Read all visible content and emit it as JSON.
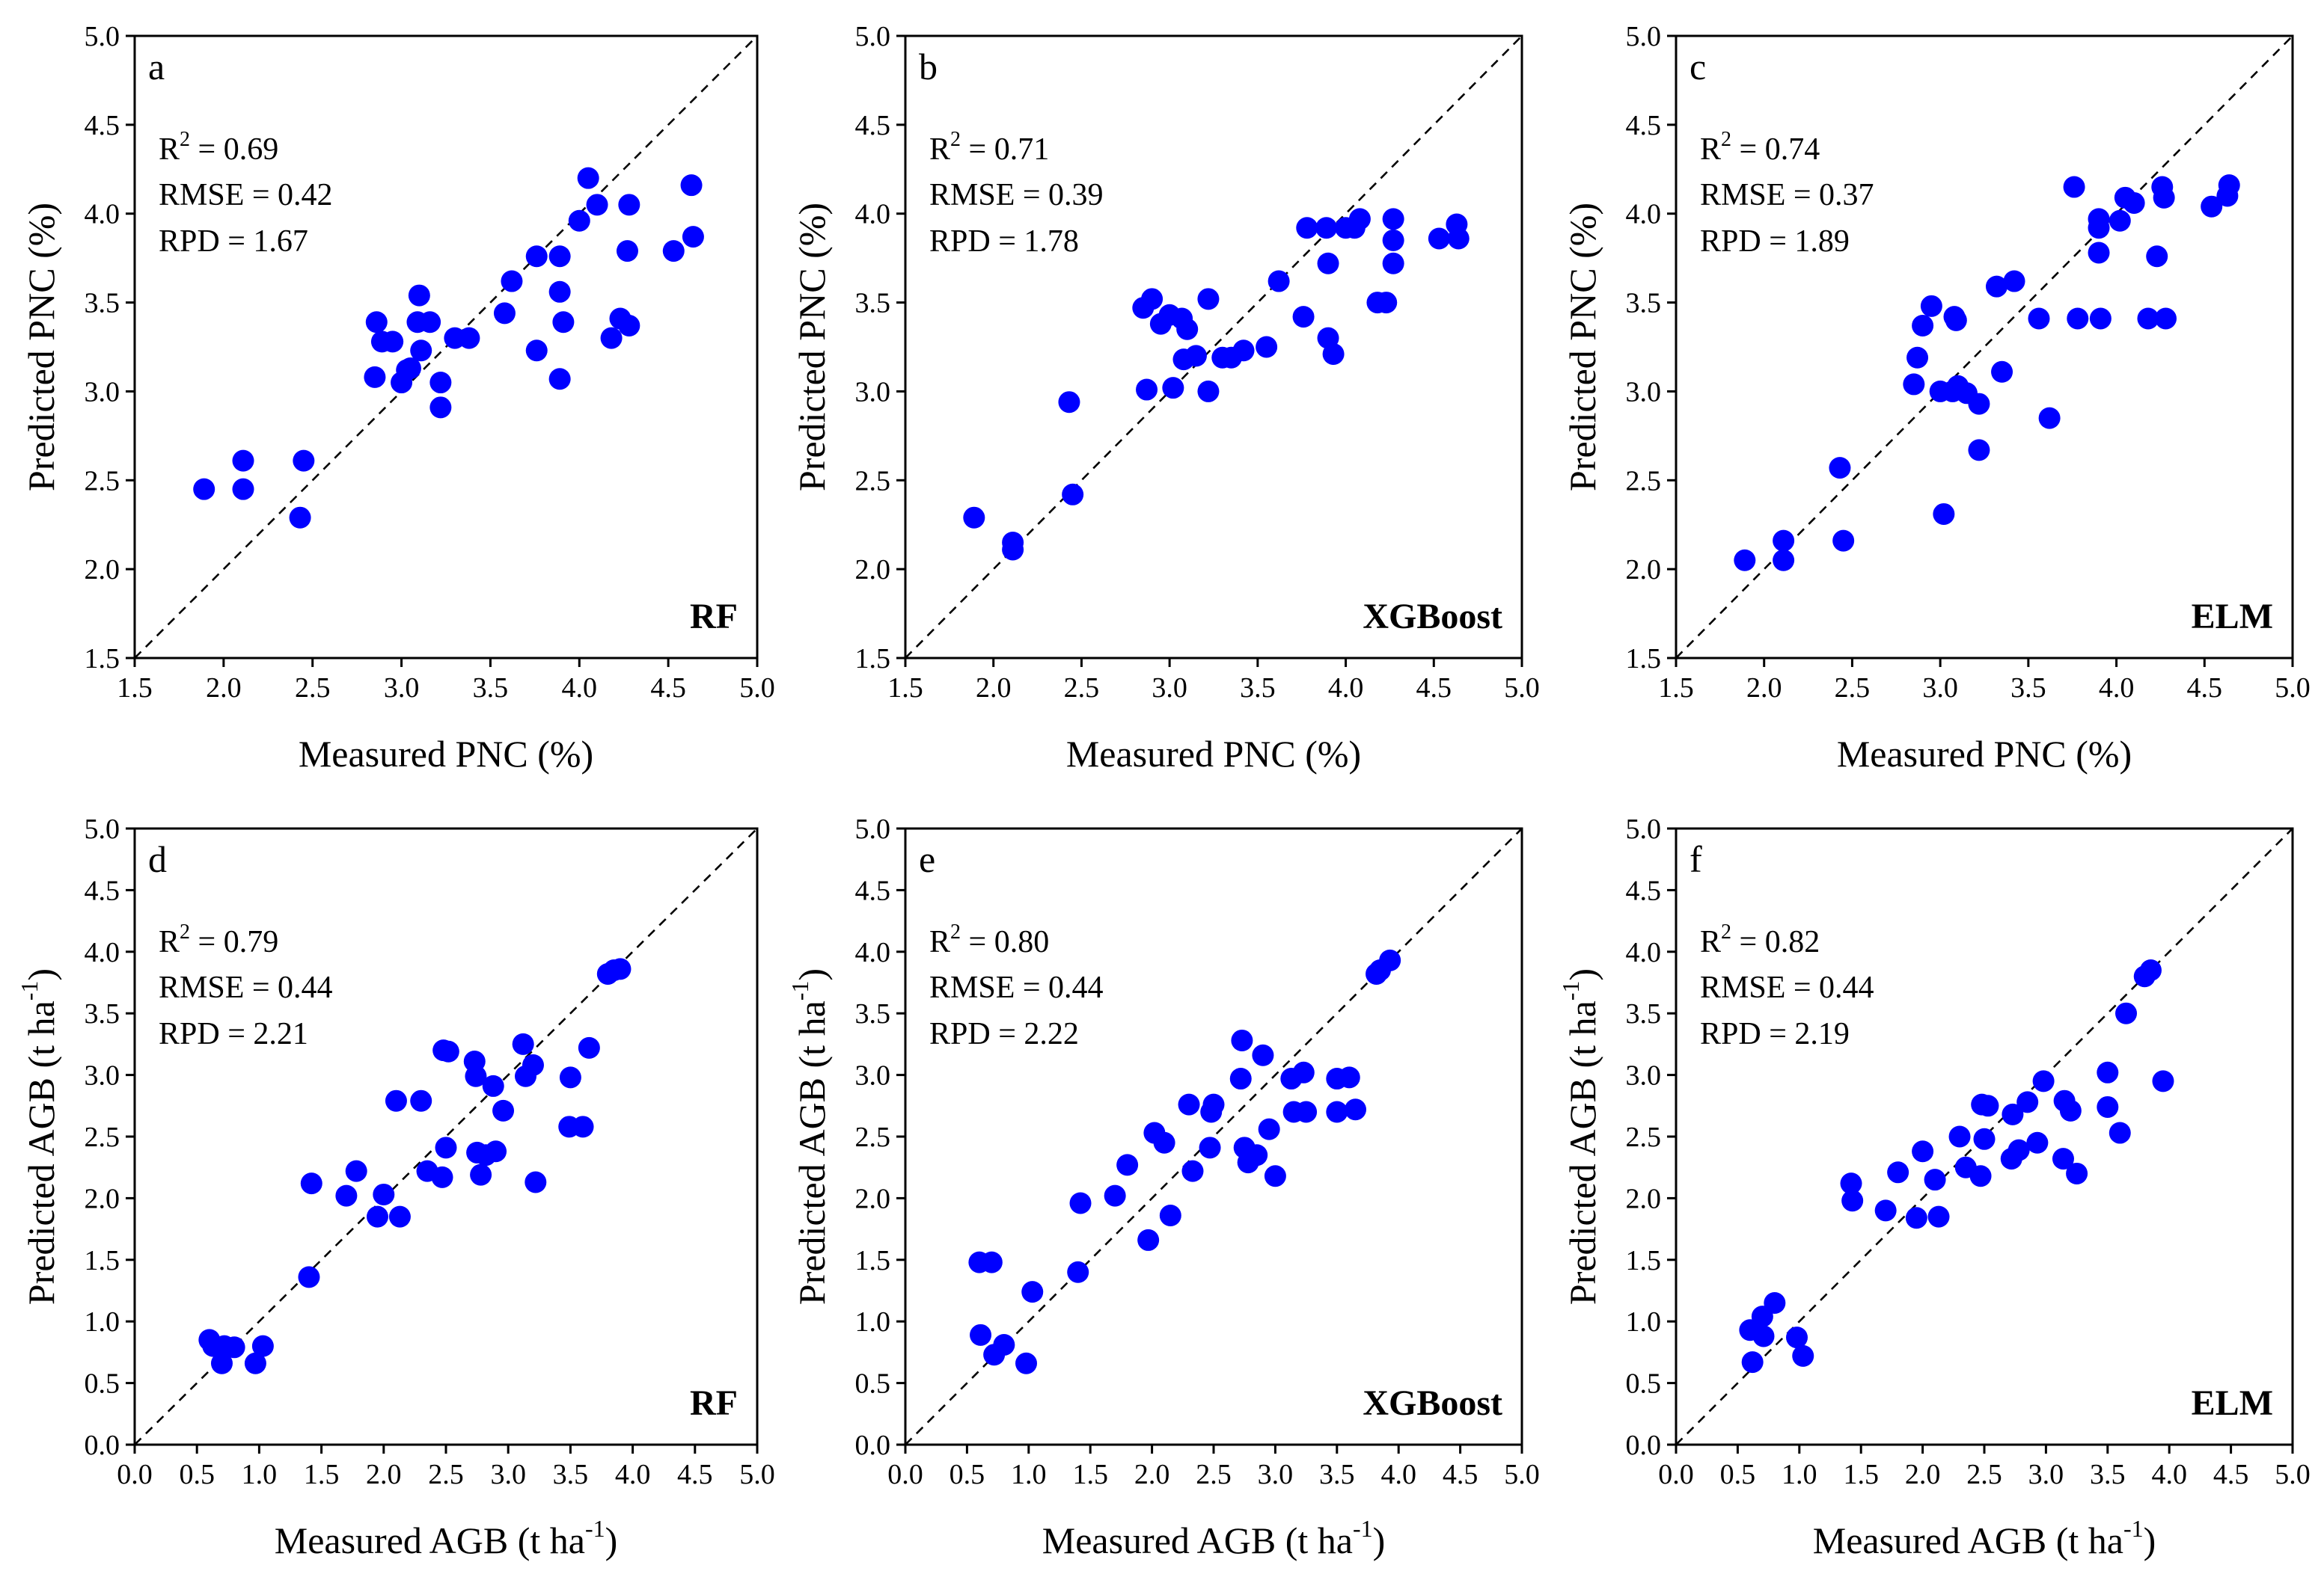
{
  "colors": {
    "point": "#0000ff",
    "axis": "#000000",
    "identity_line": "#000000"
  },
  "chart_data": [
    {
      "type": "scatter",
      "letter": "a",
      "model": "RF",
      "xlabel": "Measured PNC (%)",
      "ylabel": "Predicted PNC (%)",
      "xlim": [
        1.5,
        5.0
      ],
      "ylim": [
        1.5,
        5.0
      ],
      "xticks": [
        "1.5",
        "2.0",
        "2.5",
        "3.0",
        "3.5",
        "4.0",
        "4.5",
        "5.0"
      ],
      "yticks": [
        "1.5",
        "2.0",
        "2.5",
        "3.0",
        "3.5",
        "4.0",
        "4.5",
        "5.0"
      ],
      "stats": {
        "r2": "0.69",
        "rmse": "0.42",
        "rpd": "1.67"
      },
      "points": [
        [
          1.89,
          2.45
        ],
        [
          2.11,
          2.61
        ],
        [
          2.11,
          2.45
        ],
        [
          2.43,
          2.29
        ],
        [
          2.45,
          2.61
        ],
        [
          2.85,
          3.08
        ],
        [
          2.86,
          3.39
        ],
        [
          2.89,
          3.28
        ],
        [
          2.95,
          3.28
        ],
        [
          3.0,
          3.05
        ],
        [
          3.03,
          3.12
        ],
        [
          3.05,
          3.13
        ],
        [
          3.09,
          3.39
        ],
        [
          3.1,
          3.54
        ],
        [
          3.11,
          3.23
        ],
        [
          3.16,
          3.39
        ],
        [
          3.22,
          3.05
        ],
        [
          3.22,
          2.91
        ],
        [
          3.3,
          3.3
        ],
        [
          3.38,
          3.3
        ],
        [
          3.58,
          3.44
        ],
        [
          3.62,
          3.62
        ],
        [
          3.76,
          3.76
        ],
        [
          3.76,
          3.23
        ],
        [
          3.89,
          3.56
        ],
        [
          3.89,
          3.76
        ],
        [
          3.89,
          3.07
        ],
        [
          3.91,
          3.39
        ],
        [
          4.0,
          3.96
        ],
        [
          4.05,
          4.2
        ],
        [
          4.1,
          4.05
        ],
        [
          4.18,
          3.3
        ],
        [
          4.23,
          3.41
        ],
        [
          4.27,
          3.79
        ],
        [
          4.28,
          4.05
        ],
        [
          4.28,
          3.37
        ],
        [
          4.53,
          3.79
        ],
        [
          4.63,
          4.16
        ],
        [
          4.64,
          3.87
        ]
      ]
    },
    {
      "type": "scatter",
      "letter": "b",
      "model": "XGBoost",
      "xlabel": "Measured PNC (%)",
      "ylabel": "Predicted PNC (%)",
      "xlim": [
        1.5,
        5.0
      ],
      "ylim": [
        1.5,
        5.0
      ],
      "xticks": [
        "1.5",
        "2.0",
        "2.5",
        "3.0",
        "3.5",
        "4.0",
        "4.5",
        "5.0"
      ],
      "yticks": [
        "1.5",
        "2.0",
        "2.5",
        "3.0",
        "3.5",
        "4.0",
        "4.5",
        "5.0"
      ],
      "stats": {
        "r2": "0.71",
        "rmse": "0.39",
        "rpd": "1.78"
      },
      "points": [
        [
          1.89,
          2.29
        ],
        [
          2.11,
          2.15
        ],
        [
          2.11,
          2.11
        ],
        [
          2.43,
          2.94
        ],
        [
          2.45,
          2.42
        ],
        [
          2.85,
          3.47
        ],
        [
          2.87,
          3.01
        ],
        [
          2.9,
          3.52
        ],
        [
          2.95,
          3.38
        ],
        [
          3.0,
          3.43
        ],
        [
          3.02,
          3.02
        ],
        [
          3.07,
          3.41
        ],
        [
          3.1,
          3.35
        ],
        [
          3.08,
          3.18
        ],
        [
          3.15,
          3.2
        ],
        [
          3.22,
          3.0
        ],
        [
          3.22,
          3.52
        ],
        [
          3.3,
          3.19
        ],
        [
          3.35,
          3.19
        ],
        [
          3.42,
          3.23
        ],
        [
          3.55,
          3.25
        ],
        [
          3.62,
          3.62
        ],
        [
          3.76,
          3.42
        ],
        [
          3.78,
          3.92
        ],
        [
          3.89,
          3.92
        ],
        [
          3.9,
          3.72
        ],
        [
          3.9,
          3.3
        ],
        [
          3.93,
          3.21
        ],
        [
          4.0,
          3.92
        ],
        [
          4.05,
          3.92
        ],
        [
          4.08,
          3.97
        ],
        [
          4.18,
          3.5
        ],
        [
          4.23,
          3.5
        ],
        [
          4.27,
          3.97
        ],
        [
          4.27,
          3.85
        ],
        [
          4.27,
          3.72
        ],
        [
          4.53,
          3.86
        ],
        [
          4.63,
          3.94
        ],
        [
          4.64,
          3.86
        ]
      ]
    },
    {
      "type": "scatter",
      "letter": "c",
      "model": "ELM",
      "xlabel": "Measured PNC (%)",
      "ylabel": "Predicted PNC (%)",
      "xlim": [
        1.5,
        5.0
      ],
      "ylim": [
        1.5,
        5.0
      ],
      "xticks": [
        "1.5",
        "2.0",
        "2.5",
        "3.0",
        "3.5",
        "4.0",
        "4.5",
        "5.0"
      ],
      "yticks": [
        "1.5",
        "2.0",
        "2.5",
        "3.0",
        "3.5",
        "4.0",
        "4.5",
        "5.0"
      ],
      "stats": {
        "r2": "0.74",
        "rmse": "0.37",
        "rpd": "1.89"
      },
      "points": [
        [
          1.89,
          2.05
        ],
        [
          2.11,
          2.16
        ],
        [
          2.11,
          2.05
        ],
        [
          2.43,
          2.57
        ],
        [
          2.45,
          2.16
        ],
        [
          2.85,
          3.04
        ],
        [
          2.87,
          3.19
        ],
        [
          2.9,
          3.37
        ],
        [
          2.95,
          3.48
        ],
        [
          3.0,
          3.0
        ],
        [
          3.02,
          2.31
        ],
        [
          3.07,
          3.0
        ],
        [
          3.08,
          3.42
        ],
        [
          3.09,
          3.4
        ],
        [
          3.1,
          3.03
        ],
        [
          3.15,
          2.99
        ],
        [
          3.22,
          2.67
        ],
        [
          3.22,
          2.93
        ],
        [
          3.32,
          3.59
        ],
        [
          3.35,
          3.11
        ],
        [
          3.42,
          3.62
        ],
        [
          3.56,
          3.41
        ],
        [
          3.62,
          2.85
        ],
        [
          3.76,
          4.15
        ],
        [
          3.78,
          3.41
        ],
        [
          3.9,
          3.97
        ],
        [
          3.9,
          3.92
        ],
        [
          3.9,
          3.78
        ],
        [
          3.91,
          3.41
        ],
        [
          4.02,
          3.96
        ],
        [
          4.05,
          4.09
        ],
        [
          4.1,
          4.06
        ],
        [
          4.18,
          3.41
        ],
        [
          4.23,
          3.76
        ],
        [
          4.26,
          4.15
        ],
        [
          4.27,
          4.09
        ],
        [
          4.28,
          3.41
        ],
        [
          4.54,
          4.04
        ],
        [
          4.63,
          4.1
        ],
        [
          4.64,
          4.16
        ]
      ]
    },
    {
      "type": "scatter",
      "letter": "d",
      "model": "RF",
      "xlabel_main": "Measured AGB (t ha",
      "ylabel_main": "Predicted AGB (t ha",
      "unit_exponent": "-1",
      "unit_close": ")",
      "xlim": [
        0.0,
        5.0
      ],
      "ylim": [
        0.0,
        5.0
      ],
      "xticks": [
        "0.0",
        "0.5",
        "1.0",
        "1.5",
        "2.0",
        "2.5",
        "3.0",
        "3.5",
        "4.0",
        "4.5",
        "5.0"
      ],
      "yticks": [
        "0.0",
        "0.5",
        "1.0",
        "1.5",
        "2.0",
        "2.5",
        "3.0",
        "3.5",
        "4.0",
        "4.5",
        "5.0"
      ],
      "stats": {
        "r2": "0.79",
        "rmse": "0.44",
        "rpd": "2.21"
      },
      "points": [
        [
          0.6,
          0.85
        ],
        [
          0.63,
          0.8
        ],
        [
          0.7,
          0.66
        ],
        [
          0.72,
          0.8
        ],
        [
          0.8,
          0.79
        ],
        [
          0.97,
          0.66
        ],
        [
          1.03,
          0.8
        ],
        [
          1.4,
          1.36
        ],
        [
          1.42,
          2.12
        ],
        [
          1.7,
          2.02
        ],
        [
          1.78,
          2.22
        ],
        [
          1.95,
          1.85
        ],
        [
          2.0,
          2.03
        ],
        [
          2.1,
          2.79
        ],
        [
          2.13,
          1.85
        ],
        [
          2.3,
          2.79
        ],
        [
          2.35,
          2.22
        ],
        [
          2.47,
          2.17
        ],
        [
          2.48,
          3.2
        ],
        [
          2.5,
          2.41
        ],
        [
          2.52,
          3.19
        ],
        [
          2.73,
          3.11
        ],
        [
          2.74,
          2.99
        ],
        [
          2.75,
          2.37
        ],
        [
          2.78,
          2.19
        ],
        [
          2.82,
          2.35
        ],
        [
          2.88,
          2.91
        ],
        [
          2.9,
          2.38
        ],
        [
          2.96,
          2.71
        ],
        [
          3.12,
          3.25
        ],
        [
          3.14,
          2.99
        ],
        [
          3.2,
          3.08
        ],
        [
          3.22,
          2.13
        ],
        [
          3.49,
          2.58
        ],
        [
          3.5,
          2.98
        ],
        [
          3.6,
          2.58
        ],
        [
          3.65,
          3.22
        ],
        [
          3.8,
          3.82
        ],
        [
          3.85,
          3.85
        ],
        [
          3.9,
          3.86
        ]
      ]
    },
    {
      "type": "scatter",
      "letter": "e",
      "model": "XGBoost",
      "xlabel_main": "Measured AGB (t ha",
      "ylabel_main": "Predicted AGB (t ha",
      "unit_exponent": "-1",
      "unit_close": ")",
      "xlim": [
        0.0,
        5.0
      ],
      "ylim": [
        0.0,
        5.0
      ],
      "xticks": [
        "0.0",
        "0.5",
        "1.0",
        "1.5",
        "2.0",
        "2.5",
        "3.0",
        "3.5",
        "4.0",
        "4.5",
        "5.0"
      ],
      "yticks": [
        "0.0",
        "0.5",
        "1.0",
        "1.5",
        "2.0",
        "2.5",
        "3.0",
        "3.5",
        "4.0",
        "4.5",
        "5.0"
      ],
      "stats": {
        "r2": "0.80",
        "rmse": "0.44",
        "rpd": "2.22"
      },
      "points": [
        [
          0.6,
          1.48
        ],
        [
          0.61,
          0.89
        ],
        [
          0.7,
          1.48
        ],
        [
          0.72,
          0.73
        ],
        [
          0.8,
          0.81
        ],
        [
          0.98,
          0.66
        ],
        [
          1.03,
          1.24
        ],
        [
          1.4,
          1.4
        ],
        [
          1.42,
          1.96
        ],
        [
          1.7,
          2.02
        ],
        [
          1.8,
          2.27
        ],
        [
          1.97,
          1.66
        ],
        [
          2.02,
          2.53
        ],
        [
          2.1,
          2.45
        ],
        [
          2.15,
          1.86
        ],
        [
          2.3,
          2.76
        ],
        [
          2.33,
          2.22
        ],
        [
          2.47,
          2.41
        ],
        [
          2.48,
          2.7
        ],
        [
          2.5,
          2.76
        ],
        [
          2.72,
          2.97
        ],
        [
          2.73,
          3.28
        ],
        [
          2.75,
          2.41
        ],
        [
          2.78,
          2.29
        ],
        [
          2.85,
          2.35
        ],
        [
          2.9,
          3.16
        ],
        [
          2.95,
          2.56
        ],
        [
          3.0,
          2.18
        ],
        [
          3.13,
          2.97
        ],
        [
          3.15,
          2.7
        ],
        [
          3.23,
          3.02
        ],
        [
          3.25,
          2.7
        ],
        [
          3.5,
          2.97
        ],
        [
          3.5,
          2.7
        ],
        [
          3.6,
          2.98
        ],
        [
          3.65,
          2.72
        ],
        [
          3.82,
          3.82
        ],
        [
          3.85,
          3.85
        ],
        [
          3.93,
          3.93
        ]
      ]
    },
    {
      "type": "scatter",
      "letter": "f",
      "model": "ELM",
      "xlabel_main": "Measured AGB (t ha",
      "ylabel_main": "Predicted AGB (t ha",
      "unit_exponent": "-1",
      "unit_close": ")",
      "xlim": [
        0.0,
        5.0
      ],
      "ylim": [
        0.0,
        5.0
      ],
      "xticks": [
        "0.0",
        "0.5",
        "1.0",
        "1.5",
        "2.0",
        "2.5",
        "3.0",
        "3.5",
        "4.0",
        "4.5",
        "5.0"
      ],
      "yticks": [
        "0.0",
        "0.5",
        "1.0",
        "1.5",
        "2.0",
        "2.5",
        "3.0",
        "3.5",
        "4.0",
        "4.5",
        "5.0"
      ],
      "stats": {
        "r2": "0.82",
        "rmse": "0.44",
        "rpd": "2.19"
      },
      "points": [
        [
          0.6,
          0.93
        ],
        [
          0.62,
          0.67
        ],
        [
          0.7,
          1.04
        ],
        [
          0.71,
          0.88
        ],
        [
          0.8,
          1.15
        ],
        [
          0.98,
          0.87
        ],
        [
          1.03,
          0.72
        ],
        [
          1.42,
          2.12
        ],
        [
          1.43,
          1.98
        ],
        [
          1.7,
          1.9
        ],
        [
          1.8,
          2.21
        ],
        [
          1.95,
          1.84
        ],
        [
          2.0,
          2.38
        ],
        [
          2.1,
          2.15
        ],
        [
          2.13,
          1.85
        ],
        [
          2.3,
          2.5
        ],
        [
          2.35,
          2.25
        ],
        [
          2.47,
          2.18
        ],
        [
          2.48,
          2.76
        ],
        [
          2.5,
          2.48
        ],
        [
          2.53,
          2.75
        ],
        [
          2.72,
          2.32
        ],
        [
          2.73,
          2.68
        ],
        [
          2.78,
          2.39
        ],
        [
          2.85,
          2.78
        ],
        [
          2.93,
          2.45
        ],
        [
          2.98,
          2.95
        ],
        [
          3.14,
          2.32
        ],
        [
          3.15,
          2.79
        ],
        [
          3.2,
          2.71
        ],
        [
          3.25,
          2.2
        ],
        [
          3.5,
          3.02
        ],
        [
          3.5,
          2.74
        ],
        [
          3.6,
          2.53
        ],
        [
          3.65,
          3.5
        ],
        [
          3.8,
          3.8
        ],
        [
          3.85,
          3.85
        ],
        [
          3.95,
          2.95
        ]
      ]
    }
  ]
}
